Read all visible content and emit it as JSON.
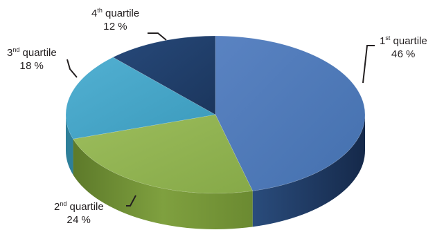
{
  "chart_data": {
    "type": "pie",
    "style": "3d",
    "title": "",
    "categories": [
      "1st quartile",
      "2nd quartile",
      "3nd quartile",
      "4th quartile"
    ],
    "values": [
      46,
      24,
      18,
      12
    ],
    "labels": [
      {
        "num": "1",
        "sup": "st",
        "word": "quartile",
        "pct": "46 %"
      },
      {
        "num": "2",
        "sup": "nd",
        "word": "quartile",
        "pct": "24 %"
      },
      {
        "num": "3",
        "sup": "nd",
        "word": "quartile",
        "pct": "18 %"
      },
      {
        "num": "4",
        "sup": "th",
        "word": "quartile",
        "pct": "12 %"
      }
    ],
    "colors": {
      "top": [
        "#4f78b7",
        "#8fb24f",
        "#45a4c7",
        "#203f6a"
      ],
      "side": [
        "#1f3a5e",
        "#6f8e34",
        "#2e7f99",
        "#14294a"
      ]
    },
    "legend": "none"
  }
}
